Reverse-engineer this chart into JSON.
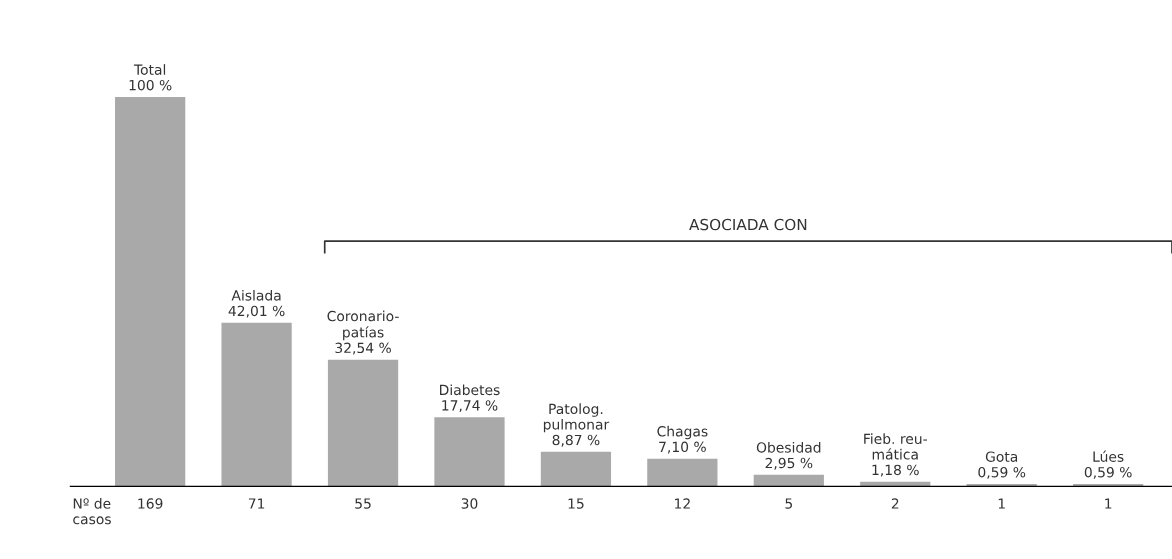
{
  "chart_data": {
    "type": "bar",
    "categories": [
      "Total",
      "Aislada",
      "Coronario-\npatías",
      "Diabetes",
      "Patolog.\npulmonar",
      "Chagas",
      "Obesidad",
      "Fieb. reu-\nmática",
      "Gota",
      "Lúes"
    ],
    "values": [
      100,
      42.01,
      32.54,
      17.74,
      8.87,
      7.1,
      2.95,
      1.18,
      0.59,
      0.59
    ],
    "value_labels": [
      "100 %",
      "42,01 %",
      "32,54 %",
      "17,74 %",
      "8,87 %",
      "7,10 %",
      "2,95 %",
      "1,18 %",
      "0,59 %",
      "0,59 %"
    ],
    "color": "#a9a9a9",
    "annotations": [
      "Nº de\ncasos",
      "ASOCIADA CON",
      "169",
      "71",
      "55",
      "30",
      "15",
      "12",
      "5",
      "2",
      "1",
      "1"
    ]
  }
}
